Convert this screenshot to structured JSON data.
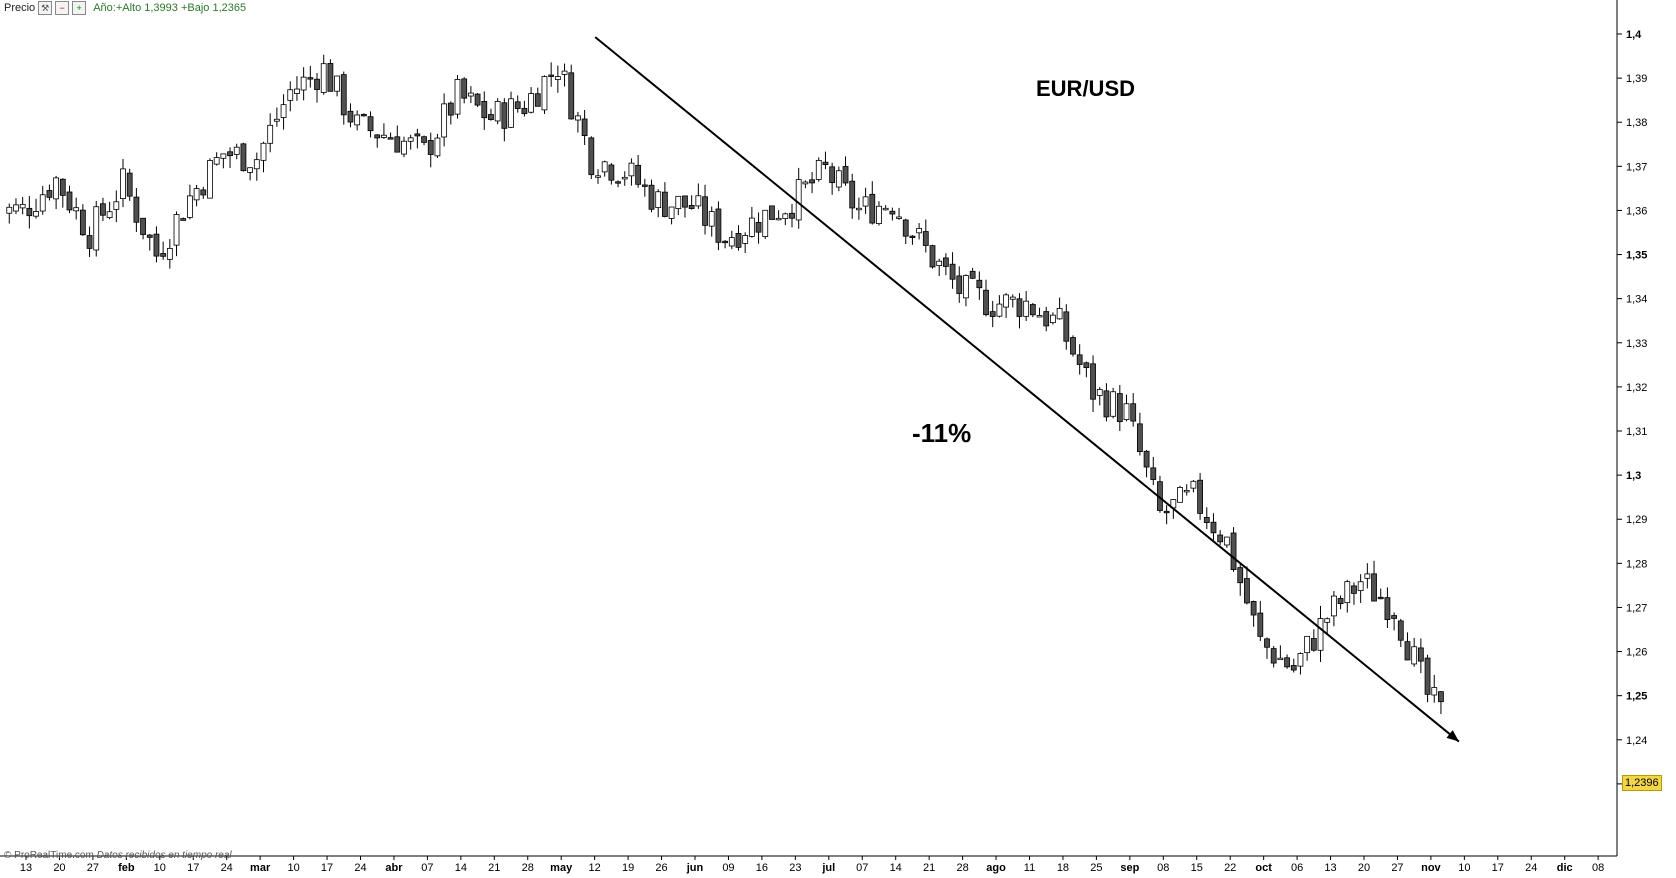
{
  "toolbar": {
    "price_label": "Precio",
    "icons": [
      "wrench-icon",
      "zoom-out-icon",
      "zoom-in-icon"
    ],
    "info": "Año:+Alto 1,3993 +Bajo 1,2365"
  },
  "footer": {
    "copyright": "© ProRealTime.com",
    "status": "Datos recibidos en tiempo real"
  },
  "colors": {
    "bull": "#ffffff",
    "bear": "#505050",
    "wick": "#000000",
    "trend_arrow": "#000000",
    "last_price_bg": "#f2d646",
    "info_text": "#2a7a2a"
  },
  "chart_data": {
    "type": "candlestick",
    "title": "EUR/USD",
    "annotation": "-11%",
    "last_price_label": "1,2396",
    "y_axis": {
      "side": "right",
      "min": 1.22,
      "max": 1.4,
      "ticks": [
        "1,4",
        "1,39",
        "1,38",
        "1,37",
        "1,36",
        "1,35",
        "1,34",
        "1,33",
        "1,32",
        "1,31",
        "1,3",
        "1,29",
        "1,28",
        "1,27",
        "1,26",
        "1,25",
        "1,24",
        "1,23"
      ],
      "bold_ticks": [
        "1,4",
        "1,35",
        "1,3",
        "1,25"
      ]
    },
    "x_axis": {
      "labels": [
        "13",
        "20",
        "27",
        "feb",
        "10",
        "17",
        "24",
        "mar",
        "10",
        "17",
        "24",
        "abr",
        "07",
        "14",
        "21",
        "28",
        "may",
        "12",
        "19",
        "26",
        "jun",
        "09",
        "16",
        "23",
        "jul",
        "07",
        "14",
        "21",
        "28",
        "ago",
        "11",
        "18",
        "25",
        "sep",
        "08",
        "15",
        "22",
        "oct",
        "06",
        "13",
        "20",
        "27",
        "nov",
        "10",
        "17",
        "24",
        "dic",
        "08"
      ],
      "bold_labels": [
        "feb",
        "mar",
        "abr",
        "may",
        "jun",
        "jul",
        "ago",
        "sep",
        "oct",
        "nov",
        "dic"
      ]
    },
    "trend_line": {
      "from": {
        "x": "may",
        "y": 1.3993
      },
      "to": {
        "x": "nov",
        "y": 1.2396
      }
    },
    "weekly_closes": [
      {
        "x": "13",
        "y": 1.36
      },
      {
        "x": "20",
        "y": 1.367
      },
      {
        "x": "27",
        "y": 1.355
      },
      {
        "x": "feb",
        "y": 1.366
      },
      {
        "x": "10",
        "y": 1.35
      },
      {
        "x": "17",
        "y": 1.363
      },
      {
        "x": "24",
        "y": 1.373
      },
      {
        "x": "mar",
        "y": 1.372
      },
      {
        "x": "10",
        "y": 1.387
      },
      {
        "x": "17",
        "y": 1.392
      },
      {
        "x": "24",
        "y": 1.379
      },
      {
        "x": "abr",
        "y": 1.377
      },
      {
        "x": "07",
        "y": 1.373
      },
      {
        "x": "14",
        "y": 1.386
      },
      {
        "x": "21",
        "y": 1.381
      },
      {
        "x": "28",
        "y": 1.384
      },
      {
        "x": "may",
        "y": 1.393
      },
      {
        "x": "12",
        "y": 1.372
      },
      {
        "x": "19",
        "y": 1.369
      },
      {
        "x": "26",
        "y": 1.362
      },
      {
        "x": "jun",
        "y": 1.361
      },
      {
        "x": "09",
        "y": 1.354
      },
      {
        "x": "16",
        "y": 1.358
      },
      {
        "x": "23",
        "y": 1.362
      },
      {
        "x": "jul",
        "y": 1.369
      },
      {
        "x": "07",
        "y": 1.36
      },
      {
        "x": "14",
        "y": 1.362
      },
      {
        "x": "21",
        "y": 1.351
      },
      {
        "x": "28",
        "y": 1.342
      },
      {
        "x": "ago",
        "y": 1.339
      },
      {
        "x": "11",
        "y": 1.339
      },
      {
        "x": "18",
        "y": 1.334
      },
      {
        "x": "25",
        "y": 1.319
      },
      {
        "x": "sep",
        "y": 1.314
      },
      {
        "x": "08",
        "y": 1.291
      },
      {
        "x": "15",
        "y": 1.295
      },
      {
        "x": "22",
        "y": 1.285
      },
      {
        "x": "oct",
        "y": 1.262
      },
      {
        "x": "06",
        "y": 1.256
      },
      {
        "x": "13",
        "y": 1.268
      },
      {
        "x": "20",
        "y": 1.276
      },
      {
        "x": "27",
        "y": 1.27
      },
      {
        "x": "nov",
        "y": 1.25
      },
      {
        "x": "10",
        "y": 1.2396
      }
    ]
  }
}
